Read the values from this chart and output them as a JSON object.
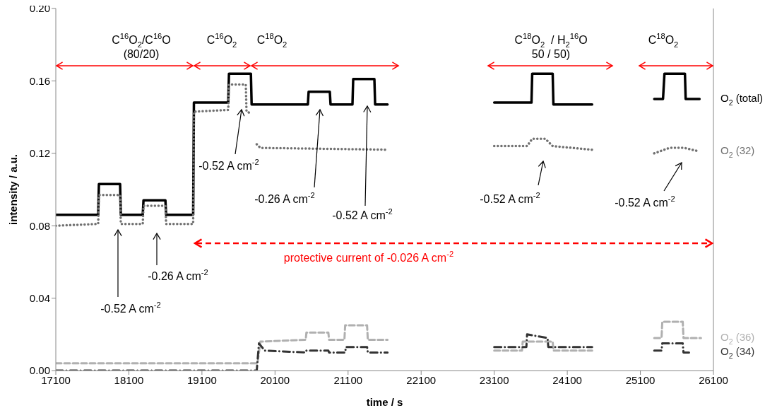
{
  "chart_data": {
    "type": "line",
    "xlabel": "time / s",
    "ylabel": "intensity / a.u.",
    "xlim": [
      17100,
      26100
    ],
    "xticks": [
      17100,
      18100,
      19100,
      20100,
      21100,
      22100,
      23100,
      24100,
      25100,
      26100
    ],
    "ylim": [
      0,
      0.2
    ],
    "yticks": [
      {
        "value": 0,
        "label": "0.00"
      },
      {
        "value": 0.04,
        "label": "0.04"
      },
      {
        "value": 0.08,
        "label": "0.08"
      },
      {
        "value": 0.12,
        "label": "0.12"
      },
      {
        "value": 0.16,
        "label": "0.16"
      },
      {
        "value": 0.2,
        "label": "0.20"
      }
    ],
    "grid": false,
    "legend": false,
    "series": [
      {
        "name": "O$_{2}$ (total)",
        "color": "#000000",
        "line_style": "solid",
        "x": [
          17100,
          17680,
          17690,
          17980,
          17990,
          18290,
          18300,
          18600,
          18610,
          18980,
          18990,
          19460,
          19470,
          19770,
          19780,
          20550,
          20560,
          20850,
          20860,
          21160,
          21170,
          21460,
          21470,
          21640,
          22300,
          23100,
          23610,
          23620,
          23900,
          23910,
          24440,
          24800,
          25290,
          25410,
          25430,
          25710,
          25720,
          25910
        ],
        "values": [
          0.086,
          0.086,
          0.103,
          0.103,
          0.086,
          0.086,
          0.094,
          0.094,
          0.086,
          0.086,
          0.148,
          0.148,
          0.164,
          0.164,
          0.147,
          0.147,
          0.154,
          0.154,
          0.147,
          0.147,
          0.161,
          0.161,
          0.147,
          0.147,
          null,
          0.148,
          0.148,
          0.164,
          0.164,
          0.147,
          0.147,
          null,
          0.15,
          0.15,
          0.164,
          0.164,
          0.15,
          0.15
        ]
      },
      {
        "name": "O$_{2}$ (32)",
        "color": "#707070",
        "line_style": "dotted",
        "x": [
          17100,
          17680,
          17690,
          17980,
          17990,
          18290,
          18300,
          18600,
          18610,
          18980,
          18990,
          19460,
          19470,
          19700,
          19710,
          19780,
          19810,
          19850,
          19900,
          21640,
          22300,
          23100,
          23550,
          23620,
          23800,
          23900,
          24440,
          24800,
          25290,
          25500,
          25700,
          25910
        ],
        "values": [
          0.08,
          0.081,
          0.097,
          0.097,
          0.081,
          0.081,
          0.091,
          0.091,
          0.081,
          0.081,
          0.143,
          0.144,
          0.158,
          0.158,
          0.143,
          0.142,
          null,
          0.125,
          0.123,
          0.122,
          null,
          0.124,
          0.124,
          0.128,
          0.128,
          0.124,
          0.122,
          null,
          0.12,
          0.123,
          0.123,
          0.121
        ]
      },
      {
        "name": "O$_{2}$ (36)",
        "color": "#b0b0b0",
        "line_style": "dashed",
        "x": [
          17100,
          19860,
          19900,
          20520,
          20530,
          20830,
          20840,
          21050,
          21060,
          21360,
          21370,
          21640,
          22300,
          23100,
          23480,
          23490,
          23900,
          23910,
          24440,
          24800,
          25290,
          25390,
          25400,
          25680,
          25690,
          25930
        ],
        "values": [
          0.004,
          0.004,
          0.016,
          0.017,
          0.021,
          0.021,
          0.017,
          0.017,
          0.025,
          0.025,
          0.017,
          0.017,
          null,
          0.011,
          0.011,
          0.016,
          0.016,
          0.011,
          0.011,
          null,
          0.018,
          0.018,
          0.027,
          0.027,
          0.018,
          0.018
        ]
      },
      {
        "name": "O$_{2}$ (34)",
        "color": "#333333",
        "line_style": "dashdot",
        "x": [
          17100,
          19850,
          19880,
          19960,
          20520,
          20530,
          20830,
          20840,
          21060,
          21070,
          21360,
          21370,
          21640,
          22300,
          23100,
          23540,
          23550,
          23830,
          23840,
          24440,
          24800,
          25290,
          25390,
          25400,
          25680,
          25690,
          25800
        ],
        "values": [
          0.0,
          0.0,
          0.015,
          0.011,
          0.01,
          0.011,
          0.011,
          0.01,
          0.01,
          0.013,
          0.013,
          0.01,
          0.01,
          null,
          0.013,
          0.013,
          0.02,
          0.018,
          0.013,
          0.013,
          null,
          0.011,
          0.011,
          0.015,
          0.015,
          0.01,
          0.01
        ]
      }
    ],
    "annotations": [
      "C$^{16}$O$_{2}$/C$^{16}$O\n(80/20)",
      "C$^{16}$O$_{2}$",
      "C$^{18}$O$_{2}$",
      "C$^{18}$O$_{2}$  / H$_{2}$$^{16}$O\n50 / 50)",
      "C$^{18}$O$_{2}$",
      "-0.52 A cm$^{-2}$",
      "-0.26 A cm$^{-2}$",
      "-0.52 A cm$^{-2}$",
      "-0.26 A cm$^{-2}$",
      "-0.52 A cm$^{-2}$",
      "-0.52 A cm$^{-2}$",
      "-0.52 A cm$^{-2}$",
      "protective current of -0.026 A cm$^{-2}$"
    ]
  }
}
